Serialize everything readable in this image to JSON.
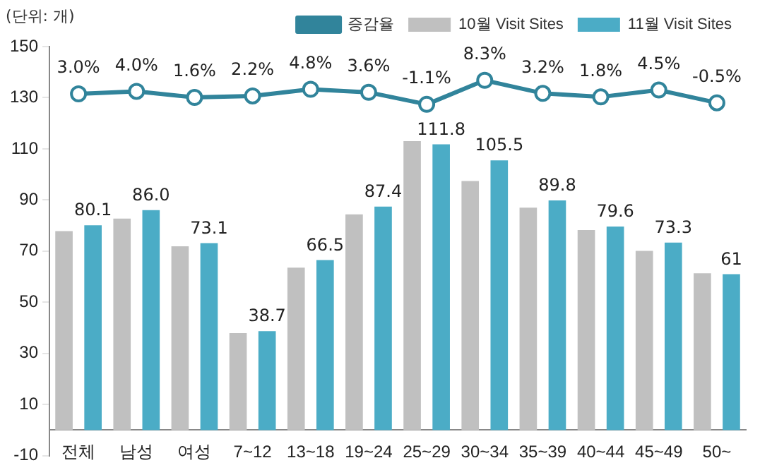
{
  "chart_data": {
    "type": "bar",
    "categories": [
      "전체",
      "남성",
      "여성",
      "7~12",
      "13~18",
      "19~24",
      "25~29",
      "30~34",
      "35~39",
      "40~44",
      "45~49",
      "50~"
    ],
    "series": [
      {
        "name": "10월 Visit Sites",
        "color": "#c0c0c0",
        "values": [
          77.8,
          82.7,
          71.9,
          37.9,
          63.5,
          84.4,
          113.0,
          97.4,
          87.0,
          78.2,
          70.1,
          61.3
        ]
      },
      {
        "name": "11월 Visit Sites",
        "color": "#4bacc6",
        "values": [
          80.1,
          86.0,
          73.1,
          38.7,
          66.5,
          87.4,
          111.8,
          105.5,
          89.8,
          79.6,
          73.3,
          61
        ],
        "value_labels": [
          "80.1",
          "86.0",
          "73.1",
          "38.7",
          "66.5",
          "87.4",
          "111.8",
          "105.5",
          "89.8",
          "79.6",
          "73.3",
          "61"
        ]
      },
      {
        "name": "증감율",
        "type": "line",
        "axis": "y2",
        "color": "#31849b",
        "marker": "circle",
        "values": [
          3.0,
          4.0,
          1.6,
          2.2,
          4.8,
          3.6,
          -1.1,
          8.3,
          3.2,
          1.8,
          4.5,
          -0.5
        ],
        "value_labels": [
          "3.0%",
          "4.0%",
          "1.6%",
          "2.2%",
          "4.8%",
          "3.6%",
          "-1.1%",
          "8.3%",
          "3.2%",
          "1.8%",
          "4.5%",
          "-0.5%"
        ]
      }
    ],
    "ylim": [
      -10,
      150
    ],
    "yticks": [
      -10,
      10,
      30,
      50,
      70,
      90,
      110,
      130,
      150
    ],
    "y2lim": [
      -138.5,
      21.5
    ],
    "legend": "top right",
    "grid": false,
    "annotations": [
      "(단위: 개)"
    ]
  }
}
